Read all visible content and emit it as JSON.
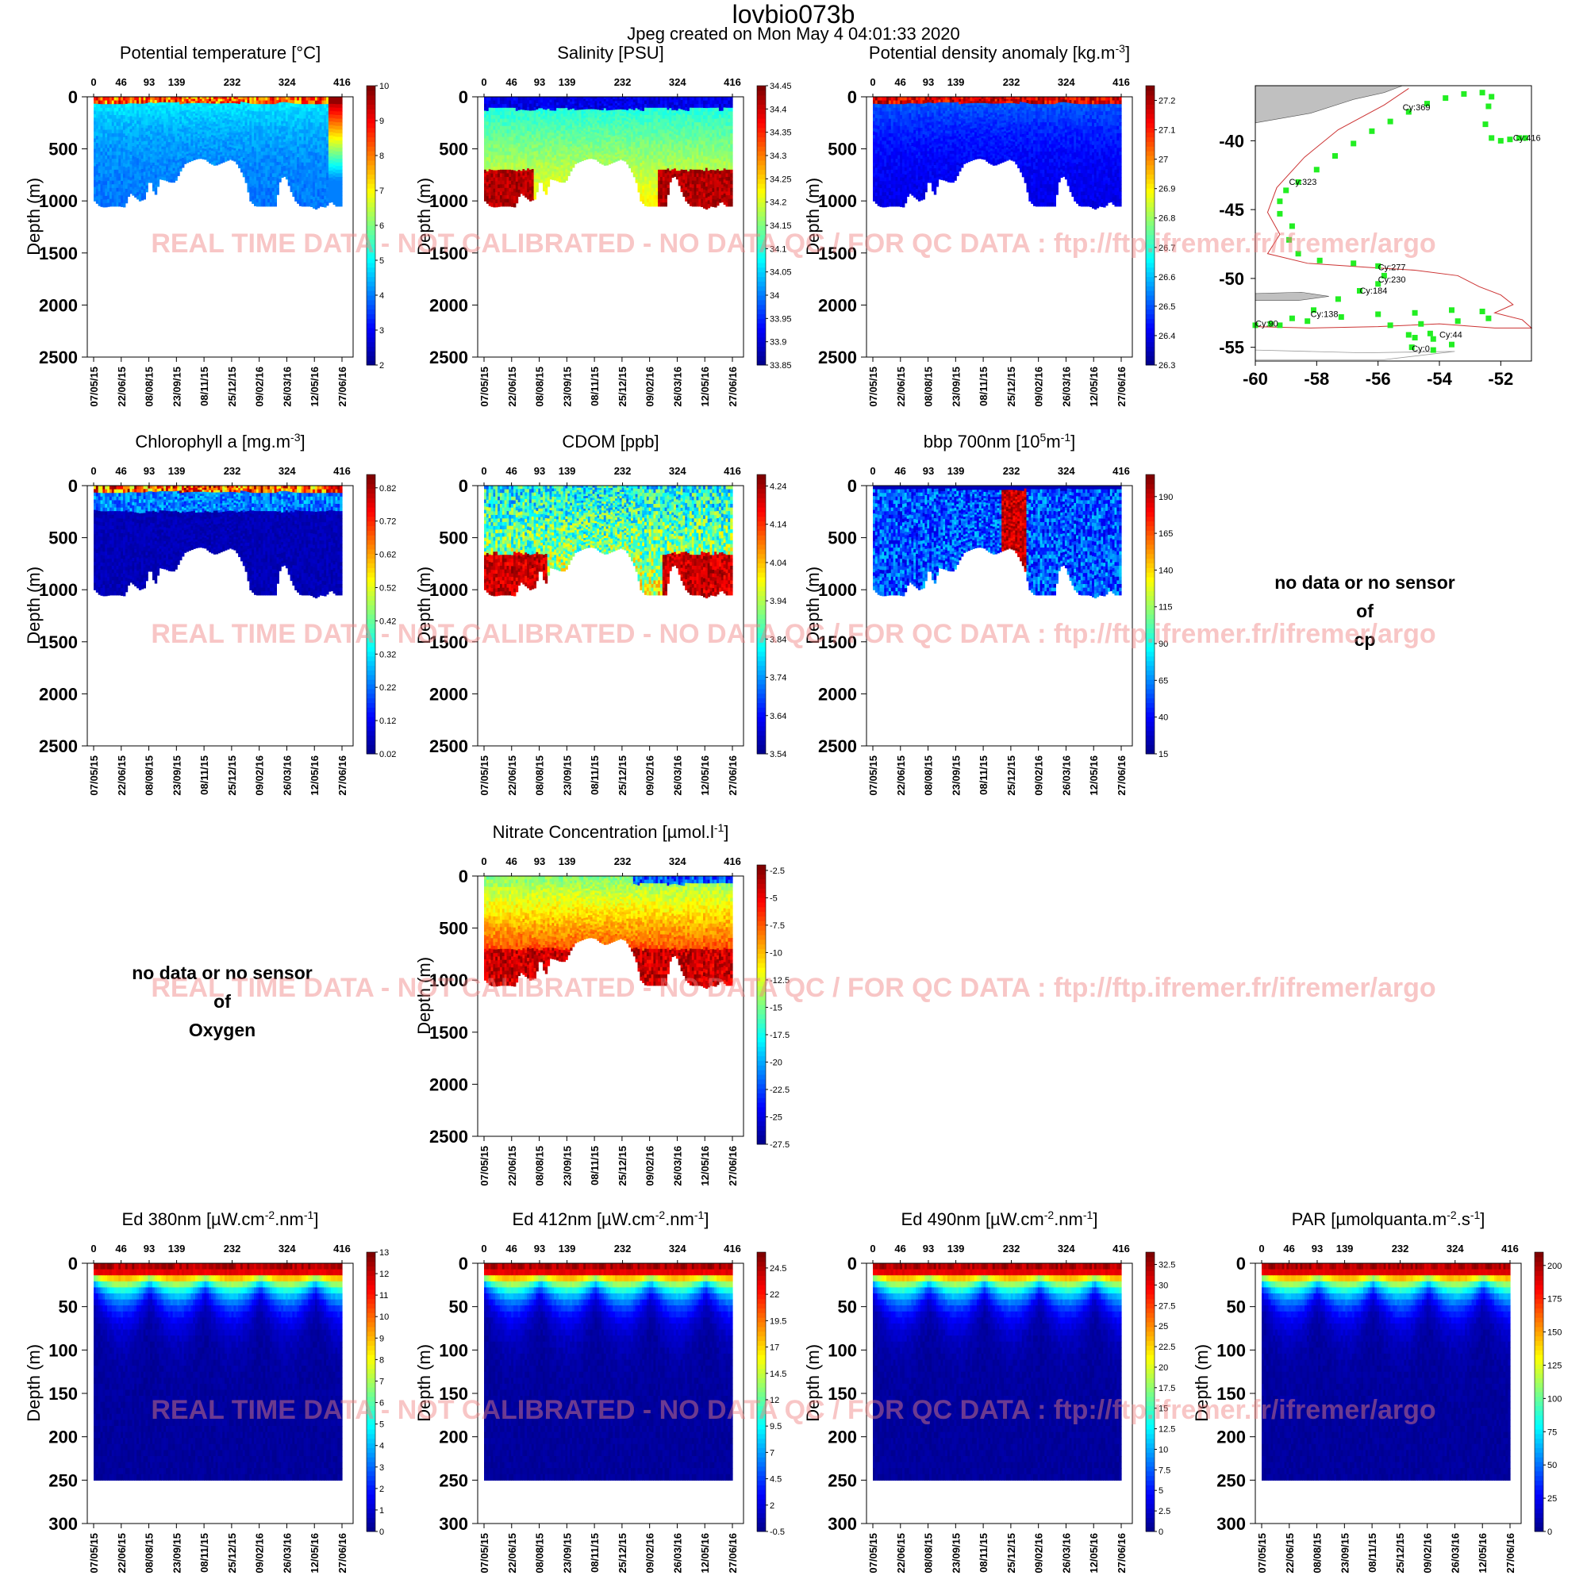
{
  "page": {
    "title": "lovbio073b",
    "subtitle": "Jpeg created on  Mon May  4 04:01:33 2020",
    "watermark": "REAL TIME DATA - NOT CALIBRATED - NO DATA QC  /  FOR QC DATA : ftp://ftp.ifremer.fr/ifremer/argo"
  },
  "colors": {
    "jet": [
      "#00008f",
      "#0000ff",
      "#0080ff",
      "#00ffff",
      "#80ff80",
      "#ffff00",
      "#ff8000",
      "#ff0000",
      "#800000"
    ],
    "gap": "#ffffff",
    "track": "#22ee22",
    "land": "#c0c0c0",
    "isobath": "#cc3333"
  },
  "no_data": [
    {
      "line1": "no data or no sensor",
      "line2": "of",
      "line3": "cp"
    },
    {
      "line1": "no data or no sensor",
      "line2": "of",
      "line3": "Oxygen"
    }
  ],
  "chart_data": [
    {
      "type": "heatmap",
      "title": "Potential temperature [°C]",
      "ylabel": "Depth (m)",
      "ylim": [
        2500,
        0
      ],
      "yticks": [
        0,
        500,
        1000,
        1500,
        2000,
        2500
      ],
      "cycle_ticks": [
        "0",
        "46",
        "93",
        "139",
        "232",
        "324",
        "416"
      ],
      "date_ticks": [
        "07/05/15",
        "22/06/15",
        "08/08/15",
        "23/09/15",
        "08/11/15",
        "25/12/15",
        "09/02/16",
        "26/03/16",
        "12/05/16",
        "27/06/16"
      ],
      "colorbar": {
        "ticks": [
          "2",
          "3",
          "4",
          "5",
          "6",
          "7",
          "8",
          "9",
          "10"
        ],
        "range": [
          2,
          10
        ]
      },
      "depth_max": [
        1000,
        1050,
        1060,
        1050,
        1050,
        1050,
        1060,
        920,
        960,
        1000,
        980,
        780,
        960,
        790,
        800,
        820,
        820,
        720,
        640,
        620,
        600,
        590,
        600,
        640,
        660,
        640,
        620,
        600,
        620,
        700,
        800,
        1000,
        1050,
        1050,
        1050,
        1050,
        1050,
        780,
        760,
        900,
        1000,
        1050,
        1050,
        1050,
        1080,
        1050,
        1060,
        1000,
        1050,
        1050
      ]
    },
    {
      "type": "heatmap",
      "title": "Salinity [PSU]",
      "ylabel": "Depth (m)",
      "ylim": [
        2500,
        0
      ],
      "yticks": [
        0,
        500,
        1000,
        1500,
        2000,
        2500
      ],
      "cycle_ticks": [
        "0",
        "46",
        "93",
        "139",
        "232",
        "324",
        "416"
      ],
      "date_ticks": [
        "07/05/15",
        "22/06/15",
        "08/08/15",
        "23/09/15",
        "08/11/15",
        "25/12/15",
        "09/02/16",
        "26/03/16",
        "12/05/16",
        "27/06/16"
      ],
      "colorbar": {
        "ticks": [
          "33.85",
          "33.9",
          "33.95",
          "34",
          "34.05",
          "34.1",
          "34.15",
          "34.2",
          "34.25",
          "34.3",
          "34.35",
          "34.4",
          "34.45"
        ],
        "range": [
          33.85,
          34.45
        ]
      }
    },
    {
      "type": "heatmap",
      "title": "Potential density anomaly [kg.m",
      "title_sup": "-3",
      "title_end": "]",
      "ylabel": "Depth (m)",
      "ylim": [
        2500,
        0
      ],
      "yticks": [
        0,
        500,
        1000,
        1500,
        2000,
        2500
      ],
      "cycle_ticks": [
        "0",
        "46",
        "93",
        "139",
        "232",
        "324",
        "416"
      ],
      "date_ticks": [
        "07/05/15",
        "22/06/15",
        "08/08/15",
        "23/09/15",
        "08/11/15",
        "25/12/15",
        "09/02/16",
        "26/03/16",
        "12/05/16",
        "27/06/16"
      ],
      "colorbar": {
        "ticks": [
          "26.3",
          "26.4",
          "26.5",
          "26.6",
          "26.7",
          "26.8",
          "26.9",
          "27",
          "27.1",
          "27.2"
        ],
        "range": [
          26.3,
          27.25
        ]
      }
    },
    {
      "type": "map",
      "xlim": [
        -60,
        -51
      ],
      "ylim": [
        -56,
        -36
      ],
      "xticks": [
        "-60",
        "-58",
        "-56",
        "-54",
        "-52"
      ],
      "yticks": [
        "-40",
        "-45",
        "-50",
        "-55"
      ],
      "labels": [
        {
          "text": "Cy:369",
          "lon": -55.2,
          "lat": -37.8
        },
        {
          "text": "Cy:416",
          "lon": -51.6,
          "lat": -40.0
        },
        {
          "text": "Cy:323",
          "lon": -58.9,
          "lat": -43.2
        },
        {
          "text": "Cy:277",
          "lon": -56.0,
          "lat": -49.4
        },
        {
          "text": "Cy:230",
          "lon": -56.0,
          "lat": -50.3
        },
        {
          "text": "Cy:184",
          "lon": -56.6,
          "lat": -51.1
        },
        {
          "text": "Cy:138",
          "lon": -58.2,
          "lat": -52.8
        },
        {
          "text": "Cy:90",
          "lon": -60.0,
          "lat": -53.5
        },
        {
          "text": "Cy:44",
          "lon": -54.0,
          "lat": -54.3
        },
        {
          "text": "Cy:0",
          "lon": -54.9,
          "lat": -55.3
        }
      ],
      "track": [
        [
          -51.2,
          -39.8
        ],
        [
          -51.4,
          -39.8
        ],
        [
          -51.7,
          -39.9
        ],
        [
          -52.0,
          -40.0
        ],
        [
          -52.3,
          -39.8
        ],
        [
          -52.5,
          -38.8
        ],
        [
          -52.4,
          -37.5
        ],
        [
          -52.3,
          -36.8
        ],
        [
          -52.6,
          -36.5
        ],
        [
          -53.2,
          -36.6
        ],
        [
          -53.8,
          -36.9
        ],
        [
          -54.4,
          -37.3
        ],
        [
          -55.0,
          -37.9
        ],
        [
          -55.6,
          -38.6
        ],
        [
          -56.2,
          -39.3
        ],
        [
          -56.8,
          -40.2
        ],
        [
          -57.4,
          -41.1
        ],
        [
          -58.0,
          -42.1
        ],
        [
          -58.6,
          -43.0
        ],
        [
          -59.0,
          -43.6
        ],
        [
          -59.2,
          -44.4
        ],
        [
          -59.2,
          -45.3
        ],
        [
          -58.8,
          -46.2
        ],
        [
          -58.9,
          -47.2
        ],
        [
          -58.6,
          -48.2
        ],
        [
          -57.9,
          -48.7
        ],
        [
          -56.8,
          -48.9
        ],
        [
          -56.0,
          -49.1
        ],
        [
          -55.8,
          -49.8
        ],
        [
          -56.0,
          -50.4
        ],
        [
          -56.6,
          -50.9
        ],
        [
          -57.3,
          -51.5
        ],
        [
          -58.1,
          -52.3
        ],
        [
          -58.8,
          -52.9
        ],
        [
          -59.5,
          -53.3
        ],
        [
          -60.0,
          -53.4
        ],
        [
          -59.2,
          -53.4
        ],
        [
          -58.3,
          -53.1
        ],
        [
          -57.2,
          -52.8
        ],
        [
          -56.0,
          -52.6
        ],
        [
          -54.8,
          -52.5
        ],
        [
          -53.6,
          -52.3
        ],
        [
          -52.6,
          -52.4
        ],
        [
          -52.4,
          -52.9
        ],
        [
          -53.4,
          -53.1
        ],
        [
          -54.6,
          -53.3
        ],
        [
          -55.6,
          -53.4
        ],
        [
          -55.0,
          -54.1
        ],
        [
          -54.2,
          -54.4
        ],
        [
          -53.6,
          -54.8
        ],
        [
          -54.2,
          -55.2
        ],
        [
          -54.9,
          -55.0
        ],
        [
          -54.8,
          -54.3
        ],
        [
          -54.3,
          -54.0
        ]
      ]
    },
    {
      "type": "heatmap",
      "title": "Chlorophyll a [mg.m",
      "title_sup": "-3",
      "title_end": "]",
      "ylabel": "Depth (m)",
      "ylim": [
        2500,
        0
      ],
      "yticks": [
        0,
        500,
        1000,
        1500,
        2000,
        2500
      ],
      "cycle_ticks": [
        "0",
        "46",
        "93",
        "139",
        "232",
        "324",
        "416"
      ],
      "date_ticks": [
        "07/05/15",
        "22/06/15",
        "08/08/15",
        "23/09/15",
        "08/11/15",
        "25/12/15",
        "09/02/16",
        "26/03/16",
        "12/05/16",
        "27/06/16"
      ],
      "colorbar": {
        "ticks": [
          "0.02",
          "0.12",
          "0.22",
          "0.32",
          "0.42",
          "0.52",
          "0.62",
          "0.72",
          "0.82"
        ],
        "range": [
          0.02,
          0.86
        ]
      }
    },
    {
      "type": "heatmap",
      "title": "CDOM  [ppb]",
      "ylabel": "Depth (m)",
      "ylim": [
        2500,
        0
      ],
      "yticks": [
        0,
        500,
        1000,
        1500,
        2000,
        2500
      ],
      "cycle_ticks": [
        "0",
        "46",
        "93",
        "139",
        "232",
        "324",
        "416"
      ],
      "date_ticks": [
        "07/05/15",
        "22/06/15",
        "08/08/15",
        "23/09/15",
        "08/11/15",
        "25/12/15",
        "09/02/16",
        "26/03/16",
        "12/05/16",
        "27/06/16"
      ],
      "colorbar": {
        "ticks": [
          "3.54",
          "3.64",
          "3.74",
          "3.84",
          "3.94",
          "4.04",
          "4.14",
          "4.24"
        ],
        "range": [
          3.54,
          4.27
        ]
      }
    },
    {
      "type": "heatmap",
      "title": "bbp 700nm [10",
      "title_sup": "5",
      "title_mid": "m",
      "title_sup2": "-1",
      "title_end": "]",
      "ylabel": "Depth (m)",
      "ylim": [
        2500,
        0
      ],
      "yticks": [
        0,
        500,
        1000,
        1500,
        2000,
        2500
      ],
      "cycle_ticks": [
        "0",
        "46",
        "93",
        "139",
        "232",
        "324",
        "416"
      ],
      "date_ticks": [
        "07/05/15",
        "22/06/15",
        "08/08/15",
        "23/09/15",
        "08/11/15",
        "25/12/15",
        "09/02/16",
        "26/03/16",
        "12/05/16",
        "27/06/16"
      ],
      "colorbar": {
        "ticks": [
          "15",
          "40",
          "65",
          "90",
          "115",
          "140",
          "165",
          "190"
        ],
        "range": [
          15,
          205
        ]
      }
    },
    {
      "type": "heatmap",
      "title": "Nitrate Concentration [µmol.l",
      "title_sup": "-1",
      "title_end": "]",
      "ylabel": "Depth (m)",
      "ylim": [
        2500,
        0
      ],
      "yticks": [
        0,
        500,
        1000,
        1500,
        2000,
        2500
      ],
      "cycle_ticks": [
        "0",
        "46",
        "93",
        "139",
        "232",
        "324",
        "416"
      ],
      "date_ticks": [
        "07/05/15",
        "22/06/15",
        "08/08/15",
        "23/09/15",
        "08/11/15",
        "25/12/15",
        "09/02/16",
        "26/03/16",
        "12/05/16",
        "27/06/16"
      ],
      "colorbar": {
        "ticks": [
          "-27.5",
          "-25",
          "-22.5",
          "-20",
          "-17.5",
          "-15",
          "-12.5",
          "-10",
          "-7.5",
          "-5",
          "-2.5"
        ],
        "range": [
          -27.5,
          -2.0
        ]
      }
    },
    {
      "type": "heatmap",
      "title": "Ed 380nm [µW.cm",
      "title_sup": "-2",
      "title_mid": ".nm",
      "title_sup2": "-1",
      "title_end": "]",
      "ylabel": "Depth (m)",
      "ylim": [
        300,
        0
      ],
      "yticks": [
        0,
        50,
        100,
        150,
        200,
        250,
        300
      ],
      "cycle_ticks": [
        "0",
        "46",
        "93",
        "139",
        "232",
        "324",
        "416"
      ],
      "date_ticks": [
        "07/05/15",
        "22/06/15",
        "08/08/15",
        "23/09/15",
        "08/11/15",
        "25/12/15",
        "09/02/16",
        "26/03/16",
        "12/05/16",
        "27/06/16"
      ],
      "colorbar": {
        "ticks": [
          "0",
          "1",
          "2",
          "3",
          "4",
          "5",
          "6",
          "7",
          "8",
          "9",
          "10",
          "11",
          "12",
          "13"
        ],
        "range": [
          0,
          13
        ]
      }
    },
    {
      "type": "heatmap",
      "title": "Ed 412nm [µW.cm",
      "title_sup": "-2",
      "title_mid": ".nm",
      "title_sup2": "-1",
      "title_end": "]",
      "ylabel": "Depth (m)",
      "ylim": [
        300,
        0
      ],
      "yticks": [
        0,
        50,
        100,
        150,
        200,
        250,
        300
      ],
      "cycle_ticks": [
        "0",
        "46",
        "93",
        "139",
        "232",
        "324",
        "416"
      ],
      "date_ticks": [
        "07/05/15",
        "22/06/15",
        "08/08/15",
        "23/09/15",
        "08/11/15",
        "25/12/15",
        "09/02/16",
        "26/03/16",
        "12/05/16",
        "27/06/16"
      ],
      "colorbar": {
        "ticks": [
          "-0.5",
          "2",
          "4.5",
          "7",
          "9.5",
          "12",
          "14.5",
          "17",
          "19.5",
          "22",
          "24.5"
        ],
        "range": [
          -0.5,
          26
        ]
      }
    },
    {
      "type": "heatmap",
      "title": "Ed 490nm [µW.cm",
      "title_sup": "-2",
      "title_mid": ".nm",
      "title_sup2": "-1",
      "title_end": "]",
      "ylabel": "Depth (m)",
      "ylim": [
        300,
        0
      ],
      "yticks": [
        0,
        50,
        100,
        150,
        200,
        250,
        300
      ],
      "cycle_ticks": [
        "0",
        "46",
        "93",
        "139",
        "232",
        "324",
        "416"
      ],
      "date_ticks": [
        "07/05/15",
        "22/06/15",
        "08/08/15",
        "23/09/15",
        "08/11/15",
        "25/12/15",
        "09/02/16",
        "26/03/16",
        "12/05/16",
        "27/06/16"
      ],
      "colorbar": {
        "ticks": [
          "0",
          "2.5",
          "5",
          "7.5",
          "10",
          "12.5",
          "15",
          "17.5",
          "20",
          "22.5",
          "25",
          "27.5",
          "30",
          "32.5"
        ],
        "range": [
          0,
          34
        ]
      }
    },
    {
      "type": "heatmap",
      "title": "PAR [µmolquanta.m",
      "title_sup": "-2",
      "title_mid": ".s",
      "title_sup2": "-1",
      "title_end": "]",
      "ylabel": "Depth (m)",
      "ylim": [
        300,
        0
      ],
      "yticks": [
        0,
        50,
        100,
        150,
        200,
        250,
        300
      ],
      "cycle_ticks": [
        "0",
        "46",
        "93",
        "139",
        "232",
        "324",
        "416"
      ],
      "date_ticks": [
        "07/05/15",
        "22/06/15",
        "08/08/15",
        "23/09/15",
        "08/11/15",
        "25/12/15",
        "09/02/16",
        "26/03/16",
        "12/05/16",
        "27/06/16"
      ],
      "colorbar": {
        "ticks": [
          "0",
          "25",
          "50",
          "75",
          "100",
          "125",
          "150",
          "175",
          "200"
        ],
        "range": [
          0,
          210
        ]
      }
    }
  ]
}
